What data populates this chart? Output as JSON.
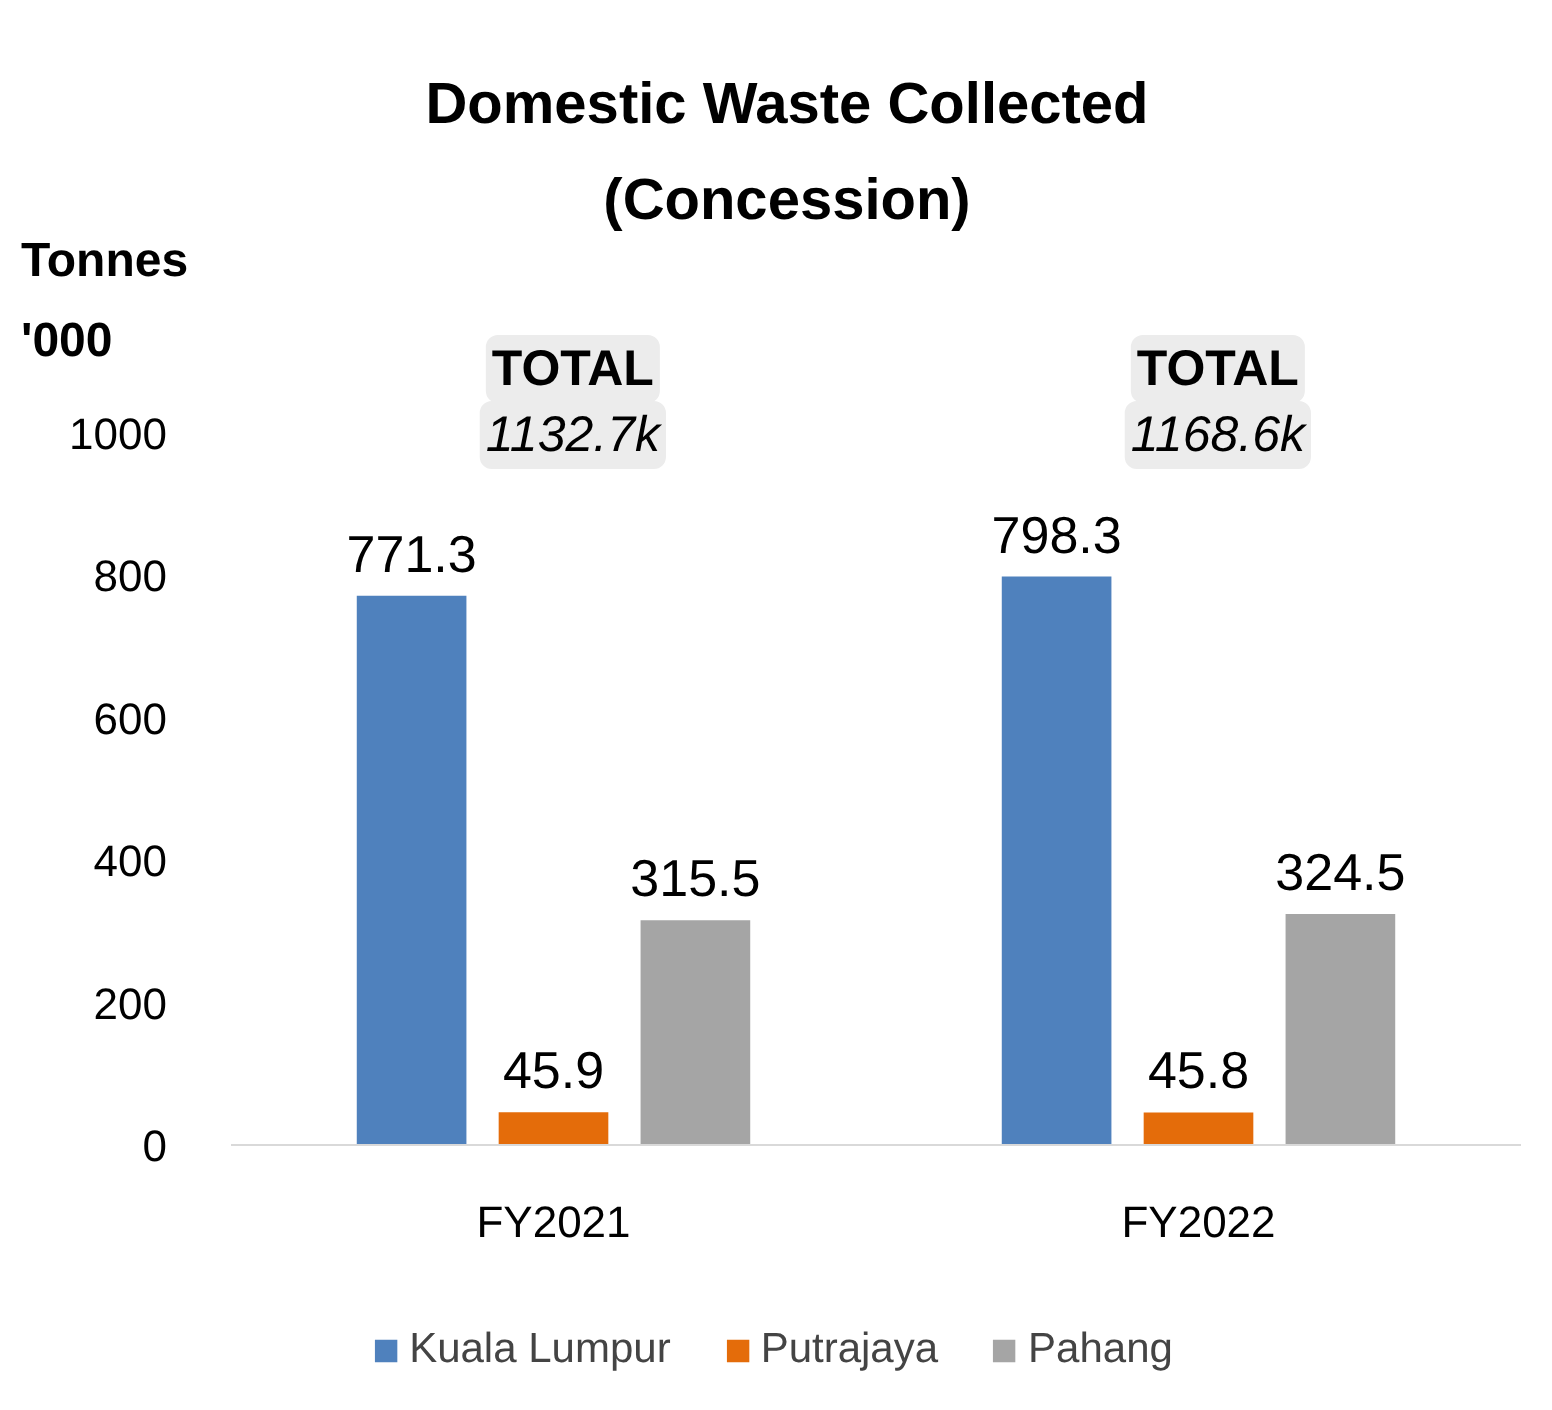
{
  "chart_data": {
    "type": "bar",
    "title": "Domestic Waste Collected\n(Concession)",
    "ylabel": "Tonnes\n'000",
    "categories": [
      "FY2021",
      "FY2022"
    ],
    "series": [
      {
        "name": "Kuala Lumpur",
        "color": "#4f81bd",
        "values": [
          771.3,
          798.3
        ]
      },
      {
        "name": "Putrajaya",
        "color": "#e46c0a",
        "values": [
          45.9,
          45.8
        ]
      },
      {
        "name": "Pahang",
        "color": "#a5a5a5",
        "values": [
          315.5,
          324.5
        ]
      }
    ],
    "annotations": [
      "TOTAL\n1132.7k",
      "TOTAL\n1168.6k"
    ],
    "ylim": [
      0,
      1000
    ],
    "yticks": [
      0,
      200,
      400,
      600,
      800,
      1000
    ],
    "data_labels": true,
    "grid": false,
    "legend": "bottom"
  }
}
